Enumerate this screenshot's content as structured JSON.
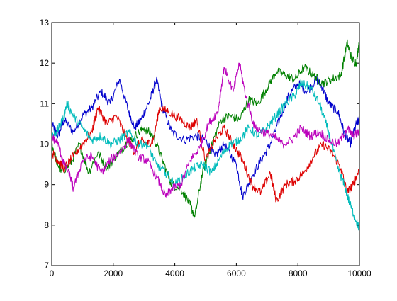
{
  "chart_data": {
    "type": "line",
    "title": "",
    "xlabel": "",
    "ylabel": "",
    "xlim": [
      0,
      10000
    ],
    "ylim": [
      7,
      13
    ],
    "xticks": [
      0,
      2000,
      4000,
      6000,
      8000,
      10000
    ],
    "yticks": [
      7,
      8,
      9,
      10,
      11,
      12,
      13
    ],
    "grid": false,
    "legend": "none",
    "series": [
      {
        "color": "#0000cc",
        "x": [
          0,
          200,
          400,
          700,
          1000,
          1300,
          1600,
          1900,
          2200,
          2500,
          2700,
          2900,
          3200,
          3400,
          3600,
          3900,
          4300,
          4700,
          5000,
          5300,
          5600,
          6000,
          6200,
          6500,
          6800,
          7100,
          7400,
          7700,
          8000,
          8300,
          8600,
          8800,
          9000,
          9300,
          9500,
          9700,
          9900,
          10000
        ],
        "y": [
          10.5,
          10.2,
          10.6,
          10.3,
          10.7,
          10.9,
          11.3,
          11.0,
          11.6,
          10.8,
          10.4,
          10.6,
          11.1,
          11.6,
          10.9,
          10.3,
          10.1,
          10.2,
          10.1,
          9.7,
          10.0,
          9.5,
          8.7,
          9.2,
          9.6,
          10.0,
          10.6,
          11.2,
          11.5,
          11.3,
          11.6,
          11.4,
          11.0,
          10.8,
          10.3,
          10.0,
          10.5,
          10.6
        ]
      },
      {
        "color": "#008000",
        "x": [
          0,
          150,
          300,
          600,
          900,
          1200,
          1500,
          1800,
          2100,
          2400,
          2700,
          3000,
          3300,
          3600,
          3900,
          4200,
          4500,
          4650,
          4900,
          5200,
          5500,
          5800,
          6100,
          6400,
          6700,
          7000,
          7300,
          7600,
          7900,
          8200,
          8500,
          8800,
          9100,
          9400,
          9600,
          9750,
          9900,
          10000
        ],
        "y": [
          10.0,
          9.6,
          9.3,
          9.5,
          10.0,
          9.3,
          9.8,
          9.4,
          9.7,
          10.0,
          10.2,
          10.4,
          10.2,
          9.6,
          9.0,
          8.9,
          8.5,
          8.2,
          9.3,
          10.0,
          10.6,
          10.7,
          10.6,
          11.1,
          11.0,
          11.4,
          11.8,
          11.7,
          11.6,
          11.9,
          11.7,
          11.5,
          11.6,
          11.7,
          12.5,
          12.1,
          12.0,
          12.6
        ]
      },
      {
        "color": "#dd0000",
        "x": [
          0,
          200,
          400,
          700,
          1000,
          1300,
          1500,
          1800,
          2100,
          2400,
          2700,
          2900,
          3100,
          3300,
          3500,
          3800,
          4200,
          4500,
          4700,
          5000,
          5300,
          5600,
          5900,
          6200,
          6500,
          6800,
          7100,
          7300,
          7600,
          7900,
          8200,
          8500,
          8800,
          9100,
          9400,
          9600,
          9800,
          10000
        ],
        "y": [
          9.8,
          9.6,
          9.4,
          9.7,
          10.0,
          10.3,
          10.9,
          10.5,
          10.7,
          10.2,
          9.8,
          10.1,
          10.0,
          10.1,
          10.9,
          10.8,
          10.6,
          10.4,
          10.6,
          9.6,
          10.1,
          10.4,
          10.0,
          9.6,
          9.0,
          8.8,
          9.3,
          8.6,
          9.0,
          9.1,
          9.3,
          9.7,
          10.0,
          9.8,
          9.4,
          8.8,
          9.0,
          9.4
        ]
      },
      {
        "color": "#00bbbb",
        "x": [
          0,
          150,
          300,
          500,
          700,
          1000,
          1300,
          1600,
          1900,
          2200,
          2500,
          2800,
          3100,
          3400,
          3700,
          4000,
          4300,
          4600,
          4900,
          5200,
          5500,
          5800,
          6100,
          6400,
          6700,
          7000,
          7300,
          7600,
          7900,
          8100,
          8400,
          8700,
          9000,
          9300,
          9500,
          9700,
          9900,
          10000
        ],
        "y": [
          10.2,
          10.3,
          10.5,
          11.0,
          10.7,
          10.4,
          10.1,
          10.2,
          10.0,
          10.1,
          10.3,
          10.0,
          10.0,
          9.5,
          9.3,
          9.0,
          9.2,
          9.4,
          9.5,
          9.3,
          9.7,
          10.0,
          10.1,
          10.4,
          10.2,
          10.4,
          10.7,
          11.0,
          11.2,
          11.5,
          11.4,
          11.0,
          10.3,
          9.4,
          9.0,
          8.5,
          8.1,
          7.9
        ]
      },
      {
        "color": "#bb00bb",
        "x": [
          0,
          200,
          400,
          600,
          700,
          1000,
          1300,
          1600,
          1900,
          2200,
          2500,
          2800,
          3100,
          3400,
          3700,
          3900,
          4200,
          4500,
          4800,
          5100,
          5400,
          5600,
          5900,
          6100,
          6300,
          6600,
          6900,
          7200,
          7500,
          7800,
          8100,
          8400,
          8700,
          9000,
          9300,
          9600,
          9800,
          10000
        ],
        "y": [
          10.2,
          10.0,
          9.5,
          9.2,
          8.9,
          9.6,
          9.7,
          9.3,
          9.6,
          9.8,
          10.1,
          9.7,
          9.6,
          9.2,
          8.7,
          8.9,
          9.0,
          9.6,
          9.9,
          10.5,
          10.8,
          11.9,
          11.3,
          12.0,
          11.2,
          10.4,
          10.3,
          10.2,
          10.0,
          10.1,
          10.4,
          10.2,
          10.3,
          10.1,
          10.0,
          10.4,
          10.2,
          10.3
        ]
      }
    ]
  }
}
